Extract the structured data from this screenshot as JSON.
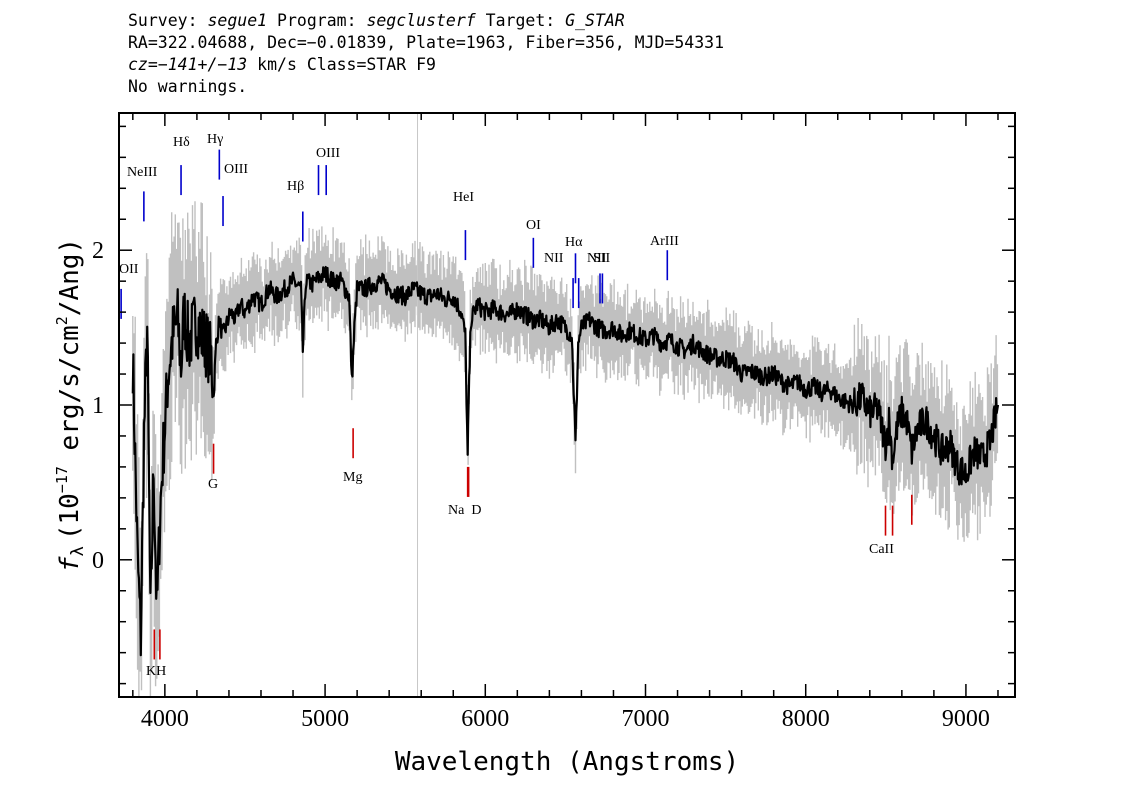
{
  "header": {
    "survey_label": "Survey: ",
    "survey": "segue1",
    "program_label": " Program: ",
    "program": "segclusterf",
    "target_label": " Target: ",
    "target": "G_STAR",
    "line2": "RA=322.04688, Dec=−0.01839, Plate=1963, Fiber=356, MJD=54331",
    "cz_label": "cz=",
    "cz": "−141+/−13",
    "cz_rest": " km/s Class=STAR F9",
    "warnings": "No warnings."
  },
  "chart_data": {
    "type": "line",
    "xlabel": "Wavelength (Angstroms)",
    "ylabel_prefix": "f",
    "ylabel_sub": "λ",
    "ylabel_main": "(10",
    "ylabel_exp": "−17",
    "ylabel_mid": " erg/s/cm",
    "ylabel_sup2": "2",
    "ylabel_end": "/Ang)",
    "xlim": [
      3720,
      9300
    ],
    "ylim": [
      -0.88,
      2.88
    ],
    "x_ticks": [
      4000,
      5000,
      6000,
      7000,
      8000,
      9000
    ],
    "y_ticks": [
      0,
      1,
      2
    ],
    "colors": {
      "flux": "#000000",
      "error_band": "#c0c0c0",
      "emission": "#0000cc",
      "absorption": "#cc0000",
      "sky_line": "#c8c8c8"
    },
    "sky_line_x": 5577,
    "series": [
      {
        "x": [
          3800,
          3830,
          3850,
          3870,
          3890,
          3910,
          3930,
          3950,
          3970,
          3990,
          4020,
          4050,
          4080,
          4101,
          4120,
          4150,
          4180,
          4200,
          4230,
          4260,
          4290,
          4304,
          4320,
          4340,
          4360,
          4380,
          4410,
          4440,
          4470,
          4500,
          4550,
          4600,
          4650,
          4700,
          4750,
          4800,
          4850,
          4861,
          4880,
          4920,
          4960,
          5000,
          5050,
          5100,
          5150,
          5167,
          5183,
          5200,
          5250,
          5300,
          5350,
          5400,
          5450,
          5500,
          5550,
          5600,
          5650,
          5700,
          5750,
          5800,
          5850,
          5875,
          5890,
          5896,
          5910,
          5950,
          6000,
          6050,
          6100,
          6150,
          6200,
          6250,
          6300,
          6350,
          6400,
          6450,
          6500,
          6540,
          6563,
          6580,
          6600,
          6650,
          6700,
          6750,
          6800,
          6850,
          6900,
          6950,
          7000,
          7050,
          7100,
          7150,
          7200,
          7250,
          7300,
          7350,
          7400,
          7450,
          7500,
          7550,
          7600,
          7650,
          7700,
          7750,
          7800,
          7850,
          7900,
          7950,
          8000,
          8050,
          8100,
          8150,
          8200,
          8250,
          8300,
          8350,
          8400,
          8450,
          8498,
          8520,
          8542,
          8570,
          8600,
          8630,
          8662,
          8700,
          8750,
          8800,
          8850,
          8900,
          8950,
          9000,
          9050,
          9100,
          9150,
          9200
        ],
        "y": [
          1.3,
          0.0,
          -0.5,
          0.8,
          1.5,
          -0.4,
          0.6,
          -0.35,
          0.3,
          0.7,
          1.2,
          1.45,
          1.55,
          1.25,
          1.6,
          1.4,
          1.5,
          1.55,
          1.45,
          1.4,
          1.3,
          1.05,
          1.4,
          1.55,
          1.45,
          1.5,
          1.6,
          1.55,
          1.65,
          1.6,
          1.7,
          1.65,
          1.75,
          1.7,
          1.75,
          1.8,
          1.75,
          1.35,
          1.8,
          1.78,
          1.82,
          1.85,
          1.8,
          1.8,
          1.7,
          1.15,
          1.5,
          1.75,
          1.75,
          1.78,
          1.8,
          1.75,
          1.72,
          1.7,
          1.75,
          1.72,
          1.7,
          1.72,
          1.68,
          1.7,
          1.6,
          1.45,
          0.65,
          1.0,
          1.55,
          1.65,
          1.6,
          1.62,
          1.6,
          1.58,
          1.62,
          1.58,
          1.55,
          1.55,
          1.5,
          1.55,
          1.5,
          1.45,
          0.75,
          1.4,
          1.5,
          1.55,
          1.5,
          1.48,
          1.5,
          1.45,
          1.48,
          1.45,
          1.42,
          1.45,
          1.4,
          1.42,
          1.38,
          1.35,
          1.4,
          1.35,
          1.32,
          1.3,
          1.3,
          1.28,
          1.2,
          1.22,
          1.2,
          1.18,
          1.2,
          1.15,
          1.12,
          1.15,
          1.1,
          1.12,
          1.08,
          1.1,
          1.05,
          1.02,
          1.0,
          1.05,
          0.95,
          0.98,
          0.75,
          0.9,
          0.65,
          0.85,
          0.95,
          0.9,
          0.7,
          0.85,
          0.9,
          0.8,
          0.7,
          0.75,
          0.6,
          0.55,
          0.7,
          0.65,
          0.75,
          1.0
        ]
      }
    ],
    "emission_lines": [
      {
        "name": "OII",
        "x": 3727,
        "y": 1.75
      },
      {
        "name": "NeIII",
        "x": 3869,
        "y": 2.38
      },
      {
        "name": "Hδ",
        "x": 4101,
        "y": 2.55
      },
      {
        "name": "Hγ",
        "x": 4340,
        "y": 2.65
      },
      {
        "name": "OIII",
        "x": 4363,
        "y": 2.35
      },
      {
        "name": "Hβ",
        "x": 4861,
        "y": 2.25
      },
      {
        "name": "OIII",
        "x": 4959,
        "y": 2.55
      },
      {
        "name": "OIII",
        "x": 5007,
        "y": 2.55
      },
      {
        "name": "HeI",
        "x": 5876,
        "y": 2.13
      },
      {
        "name": "OI",
        "x": 6300,
        "y": 2.08
      },
      {
        "name": "NII",
        "x": 6548,
        "y": 1.82
      },
      {
        "name": "Hα",
        "x": 6563,
        "y": 1.98
      },
      {
        "name": "NII",
        "x": 6583,
        "y": 1.82
      },
      {
        "name": "SII",
        "x": 6716,
        "y": 1.85
      },
      {
        "name": "SII",
        "x": 6731,
        "y": 1.85
      },
      {
        "name": "ArIII",
        "x": 7136,
        "y": 2.0
      }
    ],
    "absorption_lines": [
      {
        "name": "K",
        "x": 3934,
        "y": -0.45
      },
      {
        "name": "H",
        "x": 3969,
        "y": -0.45
      },
      {
        "name": "G",
        "x": 4304,
        "y": 0.75
      },
      {
        "name": "Mg",
        "x": 5175,
        "y": 0.85
      },
      {
        "name": "Na",
        "x": 5890,
        "y": 0.6
      },
      {
        "name": "D",
        "x": 5896,
        "y": 0.6
      },
      {
        "name": "CaII",
        "x": 8498,
        "y": 0.35
      },
      {
        "name": "CaII",
        "x": 8542,
        "y": 0.35
      },
      {
        "name": "CaII",
        "x": 8662,
        "y": 0.42
      }
    ],
    "line_label_texts": {
      "OII": "OII",
      "NeIII": "NeIII",
      "Hdelta": "Hδ",
      "Hgamma": "Hγ",
      "OIII_a": "OIII",
      "Hbeta": "Hβ",
      "OIII_b": "OIII",
      "HeI": "HeI",
      "OI": "OI",
      "NII": "NII",
      "Halpha": "Hα",
      "SII": "SII",
      "ArIII": "ArIII",
      "KH": "KH",
      "G": "G",
      "Mg": "Mg",
      "NaD": "Na  D",
      "CaII": "CaII"
    }
  }
}
